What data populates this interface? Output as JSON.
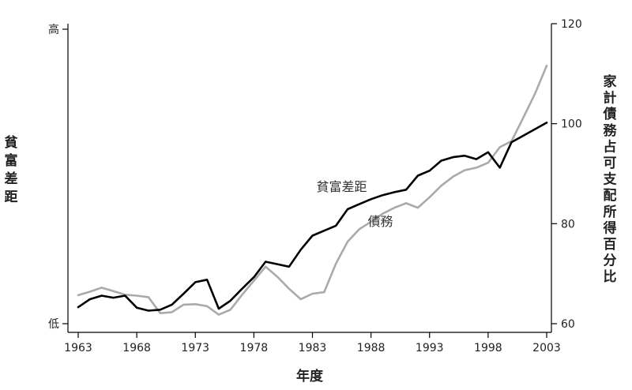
{
  "chart_data": {
    "type": "line",
    "title": "",
    "xlabel": "年度",
    "ylabel_left": "貧富差距",
    "ylabel_right": "家計債務占可支配所得百分比",
    "xlim": [
      1963,
      2003
    ],
    "x_ticks": [
      1963,
      1968,
      1973,
      1978,
      1983,
      1988,
      1993,
      1998,
      2003
    ],
    "left_ticks": [
      "高",
      "低"
    ],
    "ylim_right": [
      60,
      120
    ],
    "right_ticks": [
      60,
      80,
      100,
      120
    ],
    "grid": false,
    "legend": "none (inline labels)",
    "series": [
      {
        "name": "貧富差距",
        "color": "#000000",
        "axis": "right",
        "label_x": 1985.5,
        "label_y": 86.5,
        "x": [
          1963,
          1964,
          1965,
          1966,
          1967,
          1968,
          1969,
          1970,
          1971,
          1972,
          1973,
          1974,
          1975,
          1976,
          1977,
          1978,
          1979,
          1980,
          1981,
          1982,
          1983,
          1984,
          1985,
          1986,
          1987,
          1988,
          1989,
          1990,
          1991,
          1992,
          1993,
          1994,
          1995,
          1996,
          1997,
          1998,
          1999,
          2000,
          2001,
          2002,
          2003
        ],
        "values": [
          63.3,
          64.9,
          65.6,
          65.2,
          65.6,
          63.2,
          62.6,
          62.8,
          63.8,
          66.0,
          68.3,
          68.8,
          63.0,
          64.6,
          67.0,
          69.3,
          72.4,
          71.9,
          71.4,
          74.8,
          77.6,
          78.6,
          79.6,
          82.9,
          83.9,
          84.9,
          85.7,
          86.3,
          86.8,
          89.6,
          90.6,
          92.6,
          93.3,
          93.6,
          92.9,
          94.3,
          91.2,
          96.3,
          97.6,
          98.9,
          100.2
        ]
      },
      {
        "name": "債務",
        "color": "#aaaaaa",
        "axis": "right",
        "label_x": 1988.8,
        "label_y": 79.6,
        "x": [
          1963,
          1964,
          1965,
          1966,
          1967,
          1968,
          1969,
          1970,
          1971,
          1972,
          1973,
          1974,
          1975,
          1976,
          1977,
          1978,
          1979,
          1980,
          1981,
          1982,
          1983,
          1984,
          1985,
          1986,
          1987,
          1988,
          1989,
          1990,
          1991,
          1992,
          1993,
          1994,
          1995,
          1996,
          1997,
          1998,
          1999,
          2000,
          2001,
          2002,
          2003
        ],
        "values": [
          65.7,
          66.4,
          67.2,
          66.5,
          65.8,
          65.6,
          65.3,
          62.1,
          62.3,
          63.8,
          63.9,
          63.5,
          61.8,
          62.8,
          65.8,
          68.6,
          71.4,
          69.4,
          67.0,
          64.9,
          66.0,
          66.3,
          72.0,
          76.4,
          78.9,
          80.4,
          82.0,
          83.2,
          84.1,
          83.2,
          85.3,
          87.6,
          89.4,
          90.7,
          91.2,
          92.2,
          95.3,
          96.5,
          101.2,
          106.0,
          111.6
        ]
      }
    ]
  }
}
